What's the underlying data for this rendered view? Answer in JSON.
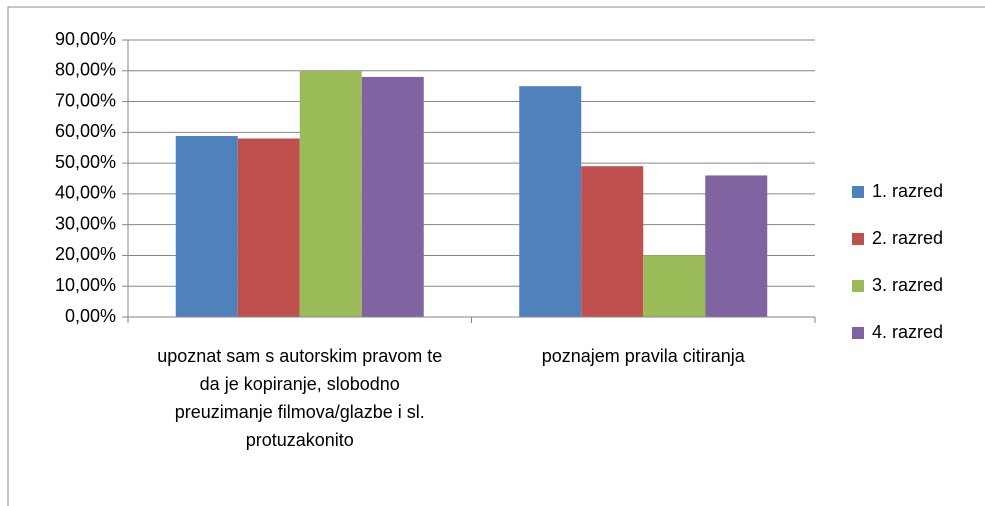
{
  "chart_data": {
    "type": "bar",
    "categories": [
      "upoznat sam s autorskim pravom te da je kopiranje, slobodno preuzimanje filmova/glazbe i sl. protuzakonito",
      "poznajem pravila citiranja"
    ],
    "series": [
      {
        "name": "1. razred",
        "color": "#4f81bd",
        "values": [
          58.8,
          75
        ]
      },
      {
        "name": "2. razred",
        "color": "#c0504d",
        "values": [
          58,
          49
        ]
      },
      {
        "name": "3. razred",
        "color": "#9bbb59",
        "values": [
          80,
          20
        ]
      },
      {
        "name": "4. razred",
        "color": "#8064a2",
        "values": [
          78,
          46
        ]
      }
    ],
    "ylim": [
      0,
      90
    ],
    "yticks": [
      {
        "value": 0,
        "label": "0,00%"
      },
      {
        "value": 10,
        "label": "10,00%"
      },
      {
        "value": 20,
        "label": "20,00%"
      },
      {
        "value": 30,
        "label": "30,00%"
      },
      {
        "value": 40,
        "label": "40,00%"
      },
      {
        "value": 50,
        "label": "50,00%"
      },
      {
        "value": 60,
        "label": "60,00%"
      },
      {
        "value": 70,
        "label": "70,00%"
      },
      {
        "value": 80,
        "label": "80,00%"
      },
      {
        "value": 90,
        "label": "90,00%"
      }
    ],
    "grid": true,
    "legend": "right"
  }
}
